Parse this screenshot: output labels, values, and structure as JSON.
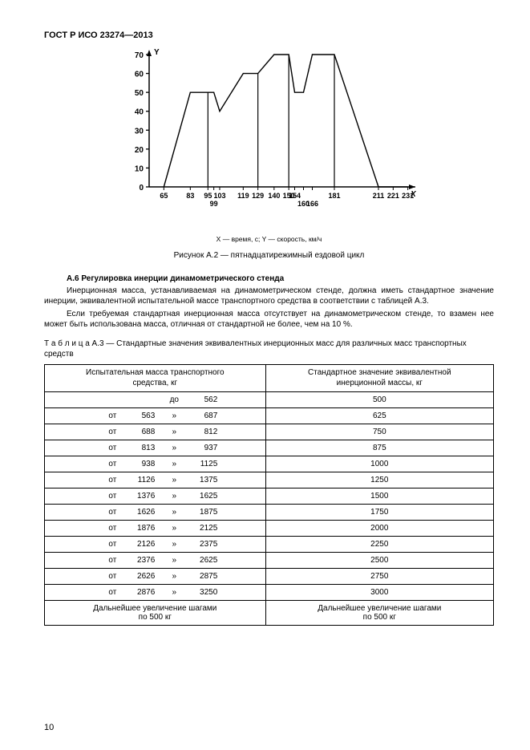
{
  "header": {
    "doc_code": "ГОСТ Р ИСО 23274—2013"
  },
  "chart": {
    "type": "line",
    "y_axis_label": "Y",
    "x_axis_label": "X",
    "x_arrow_label": "X",
    "ylim": [
      0,
      70
    ],
    "yticks": [
      0,
      10,
      20,
      30,
      40,
      50,
      60,
      70
    ],
    "x_ticks_top": [
      "65",
      "83",
      "",
      "95",
      "103",
      "",
      "119",
      "129",
      "",
      "140",
      "150",
      "",
      "154",
      "",
      "181",
      "",
      "211",
      "221",
      "",
      "231"
    ],
    "x_ticks_bot": [
      "",
      "",
      "",
      "",
      "",
      "99",
      "",
      "",
      "",
      "",
      "",
      "160",
      "",
      "166",
      "",
      "",
      "",
      "",
      "",
      ""
    ],
    "points": [
      {
        "x": 65,
        "y": 0
      },
      {
        "x": 83,
        "y": 50
      },
      {
        "x": 95,
        "y": 50
      },
      {
        "x": 99,
        "y": 50
      },
      {
        "x": 103,
        "y": 40
      },
      {
        "x": 119,
        "y": 60
      },
      {
        "x": 129,
        "y": 60
      },
      {
        "x": 140,
        "y": 70
      },
      {
        "x": 150,
        "y": 70
      },
      {
        "x": 154,
        "y": 50
      },
      {
        "x": 160,
        "y": 50
      },
      {
        "x": 166,
        "y": 70
      },
      {
        "x": 181,
        "y": 70
      },
      {
        "x": 211,
        "y": 0
      },
      {
        "x": 221,
        "y": 0
      },
      {
        "x": 231,
        "y": 0
      }
    ],
    "verticals_at": [
      95,
      129,
      150,
      181
    ],
    "line_color": "#000000",
    "line_width": 1.4,
    "background_color": "#ffffff",
    "font_size_axis": 10,
    "font_weight_axis": "bold"
  },
  "captions": {
    "axis_legend": "X — время, с; Y — скорость, км/ч",
    "figure": "Рисунок А.2 — пятнадцатирежимный ездовой цикл"
  },
  "section": {
    "heading": "А.6 Регулировка инерции динамометрического стенда",
    "p1": "Инерционная масса, устанавливаемая на динамометрическом стенде, должна иметь стандартное значение инерции, эквивалентной испытательной массе транспортного средства в соответствии с таблицей А.3.",
    "p2": "Если требуемая стандартная инерционная масса отсутствует на динамометрическом стенде, то взамен нее может быть использована масса, отличная от стандартной не более, чем на 10 %."
  },
  "table": {
    "caption": "Т а б л и ц а  А.3 — Стандартные значения эквивалентных инерционных масс для различных масс транспортных средств",
    "col1_header": "Испытательная масса транспортного\nсредства, кг",
    "col2_header": "Стандартное значение эквивалентной\nинерционной массы, кг",
    "rows": [
      {
        "from": "",
        "sep": "до",
        "to": "562",
        "val": "500"
      },
      {
        "from": "563",
        "sep": "»",
        "to": "687",
        "val": "625"
      },
      {
        "from": "688",
        "sep": "»",
        "to": "812",
        "val": "750"
      },
      {
        "from": "813",
        "sep": "»",
        "to": "937",
        "val": "875"
      },
      {
        "from": "938",
        "sep": "»",
        "to": "1125",
        "val": "1000"
      },
      {
        "from": "1126",
        "sep": "»",
        "to": "1375",
        "val": "1250"
      },
      {
        "from": "1376",
        "sep": "»",
        "to": "1625",
        "val": "1500"
      },
      {
        "from": "1626",
        "sep": "»",
        "to": "1875",
        "val": "1750"
      },
      {
        "from": "1876",
        "sep": "»",
        "to": "2125",
        "val": "2000"
      },
      {
        "from": "2126",
        "sep": "»",
        "to": "2375",
        "val": "2250"
      },
      {
        "from": "2376",
        "sep": "»",
        "to": "2625",
        "val": "2500"
      },
      {
        "from": "2626",
        "sep": "»",
        "to": "2875",
        "val": "2750"
      },
      {
        "from": "2876",
        "sep": "»",
        "to": "3250",
        "val": "3000"
      }
    ],
    "footer_left": "Дальнейшее увеличение шагами\nпо 500 кг",
    "footer_right": "Дальнейшее увеличение шагами\nпо 500 кг",
    "row_prefix": "от"
  },
  "page_number": "10"
}
